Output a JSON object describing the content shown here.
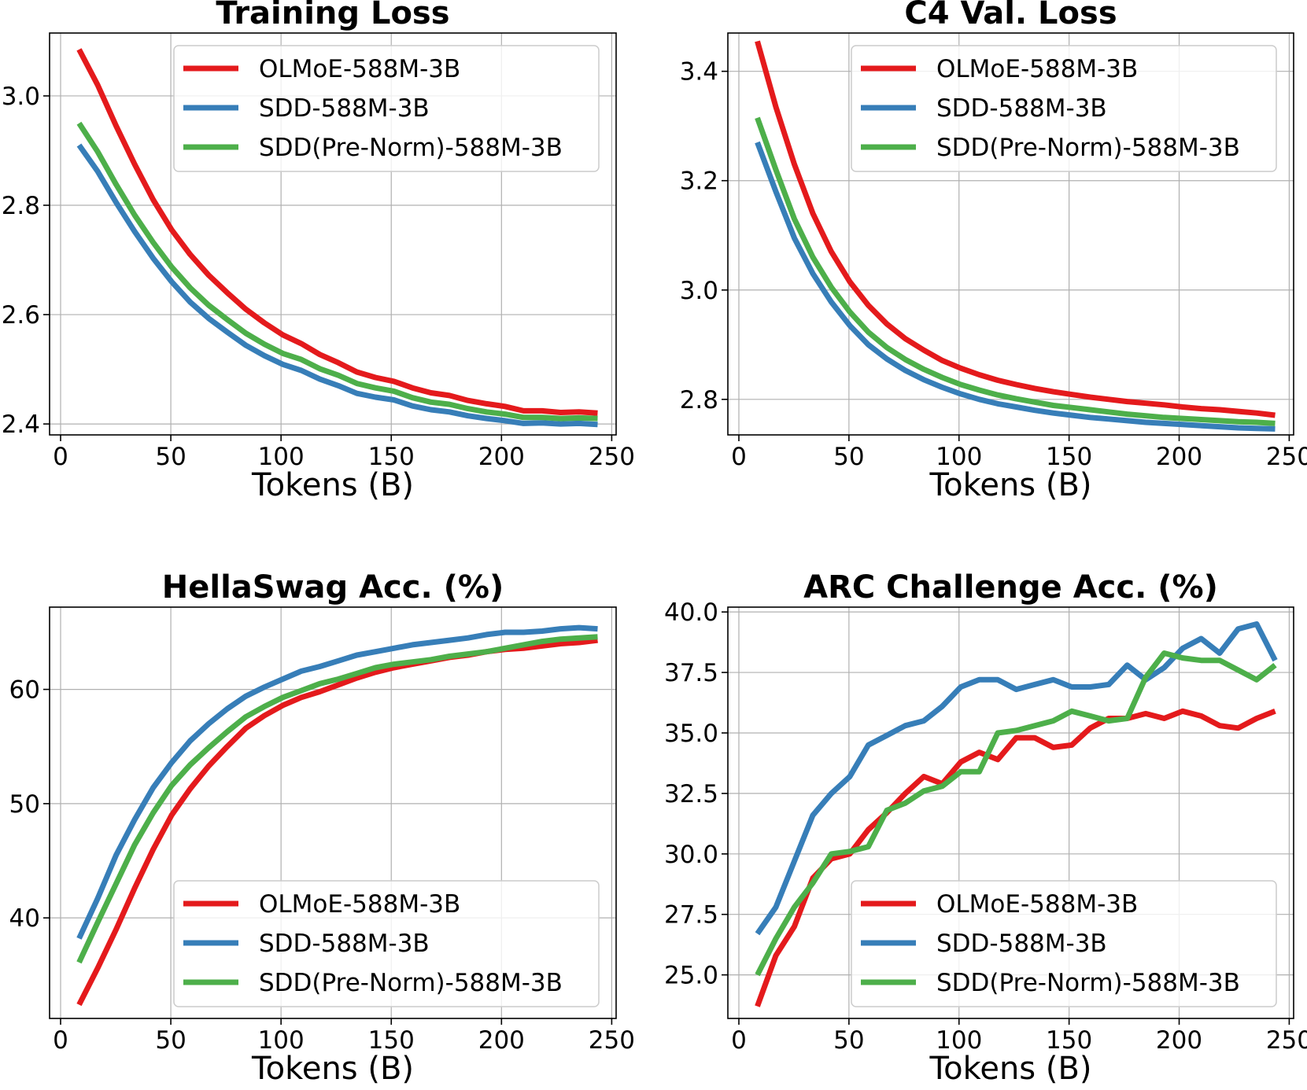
{
  "chart_data": [
    {
      "type": "line",
      "title": "Training Loss",
      "xlabel": "Tokens (B)",
      "ylabel": "",
      "xlim": [
        -5,
        252
      ],
      "ylim": [
        2.38,
        3.115
      ],
      "xticks": [
        0,
        50,
        100,
        150,
        200,
        250
      ],
      "xtick_labels": [
        "0",
        "50",
        "100",
        "150",
        "200",
        "250"
      ],
      "yticks": [
        2.4,
        2.6,
        2.8,
        3.0
      ],
      "ytick_labels": [
        "2.4",
        "2.6",
        "2.8",
        "3.0"
      ],
      "grid": true,
      "legend_position": "top-right",
      "x": [
        8.4,
        16.8,
        25.2,
        33.6,
        42,
        50.4,
        58.8,
        67.2,
        75.6,
        84,
        92.4,
        100.8,
        109.2,
        117.6,
        126,
        134.4,
        142.8,
        151.2,
        159.6,
        168,
        176.4,
        184.8,
        193.2,
        201.6,
        210,
        218.4,
        226.8,
        235.2,
        243.6
      ],
      "series": [
        {
          "name": "OLMoE-588M-3B",
          "color": "#e41a1c",
          "values": [
            3.085,
            3.02,
            2.945,
            2.875,
            2.81,
            2.755,
            2.71,
            2.672,
            2.64,
            2.61,
            2.585,
            2.563,
            2.547,
            2.527,
            2.512,
            2.495,
            2.485,
            2.478,
            2.466,
            2.457,
            2.452,
            2.443,
            2.437,
            2.432,
            2.424,
            2.424,
            2.421,
            2.422,
            2.42
          ]
        },
        {
          "name": "SDD-588M-3B",
          "color": "#377eb8",
          "values": [
            2.91,
            2.862,
            2.805,
            2.752,
            2.703,
            2.66,
            2.623,
            2.593,
            2.568,
            2.544,
            2.525,
            2.509,
            2.498,
            2.482,
            2.47,
            2.456,
            2.449,
            2.444,
            2.433,
            2.426,
            2.422,
            2.415,
            2.41,
            2.406,
            2.401,
            2.402,
            2.4,
            2.401,
            2.399
          ]
        },
        {
          "name": "SDD(Pre-Norm)-588M-3B",
          "color": "#4daf4a",
          "values": [
            2.95,
            2.898,
            2.838,
            2.782,
            2.732,
            2.687,
            2.649,
            2.617,
            2.591,
            2.566,
            2.546,
            2.529,
            2.518,
            2.501,
            2.489,
            2.474,
            2.466,
            2.46,
            2.448,
            2.44,
            2.436,
            2.428,
            2.422,
            2.418,
            2.412,
            2.412,
            2.41,
            2.411,
            2.41
          ]
        }
      ]
    },
    {
      "type": "line",
      "title": "C4 Val. Loss",
      "xlabel": "Tokens (B)",
      "ylabel": "",
      "xlim": [
        -5,
        252
      ],
      "ylim": [
        2.735,
        3.47
      ],
      "xticks": [
        0,
        50,
        100,
        150,
        200,
        250
      ],
      "xtick_labels": [
        "0",
        "50",
        "100",
        "150",
        "200",
        "250"
      ],
      "yticks": [
        2.8,
        3.0,
        3.2,
        3.4
      ],
      "ytick_labels": [
        "2.8",
        "3.0",
        "3.2",
        "3.4"
      ],
      "grid": true,
      "legend_position": "top-right",
      "x": [
        8.4,
        16.8,
        25.2,
        33.6,
        42,
        50.4,
        58.8,
        67.2,
        75.6,
        84,
        92.4,
        100.8,
        109.2,
        117.6,
        126,
        134.4,
        142.8,
        151.2,
        159.6,
        168,
        176.4,
        184.8,
        193.2,
        201.6,
        210,
        218.4,
        226.8,
        235.2,
        243.6
      ],
      "series": [
        {
          "name": "OLMoE-588M-3B",
          "color": "#e41a1c",
          "values": [
            3.455,
            3.335,
            3.23,
            3.14,
            3.07,
            3.015,
            2.972,
            2.938,
            2.911,
            2.89,
            2.871,
            2.857,
            2.845,
            2.835,
            2.827,
            2.82,
            2.814,
            2.809,
            2.804,
            2.8,
            2.796,
            2.793,
            2.79,
            2.786,
            2.783,
            2.781,
            2.778,
            2.775,
            2.771
          ]
        },
        {
          "name": "SDD-588M-3B",
          "color": "#377eb8",
          "values": [
            3.27,
            3.18,
            3.095,
            3.03,
            2.978,
            2.935,
            2.9,
            2.874,
            2.853,
            2.836,
            2.822,
            2.81,
            2.8,
            2.792,
            2.786,
            2.78,
            2.775,
            2.771,
            2.767,
            2.764,
            2.761,
            2.758,
            2.756,
            2.754,
            2.752,
            2.75,
            2.748,
            2.747,
            2.746
          ]
        },
        {
          "name": "SDD(Pre-Norm)-588M-3B",
          "color": "#4daf4a",
          "values": [
            3.315,
            3.22,
            3.13,
            3.06,
            3.005,
            2.96,
            2.923,
            2.895,
            2.873,
            2.855,
            2.84,
            2.827,
            2.817,
            2.808,
            2.801,
            2.795,
            2.789,
            2.785,
            2.781,
            2.777,
            2.773,
            2.77,
            2.767,
            2.765,
            2.763,
            2.761,
            2.759,
            2.758,
            2.756
          ]
        }
      ]
    },
    {
      "type": "line",
      "title": "HellaSwag Acc. (%)",
      "xlabel": "Tokens (B)",
      "ylabel": "",
      "xlim": [
        -5,
        252
      ],
      "ylim": [
        31.2,
        67.2
      ],
      "xticks": [
        0,
        50,
        100,
        150,
        200,
        250
      ],
      "xtick_labels": [
        "0",
        "50",
        "100",
        "150",
        "200",
        "250"
      ],
      "yticks": [
        40,
        50,
        60
      ],
      "ytick_labels": [
        "40",
        "50",
        "60"
      ],
      "grid": true,
      "legend_position": "bottom-right",
      "x": [
        8.4,
        16.8,
        25.2,
        33.6,
        42,
        50.4,
        58.8,
        67.2,
        75.6,
        84,
        92.4,
        100.8,
        109.2,
        117.6,
        126,
        134.4,
        142.8,
        151.2,
        159.6,
        168,
        176.4,
        184.8,
        193.2,
        201.6,
        210,
        218.4,
        226.8,
        235.2,
        243.6
      ],
      "series": [
        {
          "name": "OLMoE-588M-3B",
          "color": "#e41a1c",
          "values": [
            32.4,
            35.6,
            39.0,
            42.6,
            46.0,
            49.0,
            51.3,
            53.3,
            55.0,
            56.6,
            57.7,
            58.6,
            59.3,
            59.8,
            60.4,
            61.0,
            61.5,
            61.9,
            62.2,
            62.5,
            62.8,
            63.0,
            63.3,
            63.5,
            63.6,
            63.8,
            64.0,
            64.1,
            64.3
          ]
        },
        {
          "name": "SDD-588M-3B",
          "color": "#377eb8",
          "values": [
            38.2,
            41.7,
            45.5,
            48.6,
            51.4,
            53.6,
            55.5,
            57.0,
            58.3,
            59.4,
            60.2,
            60.9,
            61.6,
            62.0,
            62.5,
            63.0,
            63.3,
            63.6,
            63.9,
            64.1,
            64.3,
            64.5,
            64.8,
            65.0,
            65.0,
            65.1,
            65.3,
            65.4,
            65.3
          ]
        },
        {
          "name": "SDD(Pre-Norm)-588M-3B",
          "color": "#4daf4a",
          "values": [
            36.1,
            39.6,
            43.0,
            46.4,
            49.2,
            51.6,
            53.4,
            54.9,
            56.3,
            57.6,
            58.5,
            59.3,
            59.9,
            60.5,
            60.9,
            61.4,
            61.9,
            62.2,
            62.4,
            62.6,
            62.9,
            63.1,
            63.3,
            63.6,
            63.9,
            64.2,
            64.4,
            64.5,
            64.6
          ]
        }
      ]
    },
    {
      "type": "line",
      "title": "ARC Challenge Acc. (%)",
      "xlabel": "Tokens (B)",
      "ylabel": "",
      "xlim": [
        -5,
        252
      ],
      "ylim": [
        23.2,
        40.2
      ],
      "xticks": [
        0,
        50,
        100,
        150,
        200,
        250
      ],
      "xtick_labels": [
        "0",
        "50",
        "100",
        "150",
        "200",
        "250"
      ],
      "yticks": [
        25.0,
        27.5,
        30.0,
        32.5,
        35.0,
        37.5,
        40.0
      ],
      "ytick_labels": [
        "25.0",
        "27.5",
        "30.0",
        "32.5",
        "35.0",
        "37.5",
        "40.0"
      ],
      "grid": true,
      "legend_position": "bottom-right",
      "x": [
        8.4,
        16.8,
        25.2,
        33.6,
        42,
        50.4,
        58.8,
        67.2,
        75.6,
        84,
        92.4,
        100.8,
        109.2,
        117.6,
        126,
        134.4,
        142.8,
        151.2,
        159.6,
        168,
        176.4,
        184.8,
        193.2,
        201.6,
        210,
        218.4,
        226.8,
        235.2,
        243.6
      ],
      "series": [
        {
          "name": "OLMoE-588M-3B",
          "color": "#e41a1c",
          "values": [
            23.7,
            25.8,
            27.0,
            29.0,
            29.8,
            30.0,
            31.0,
            31.7,
            32.5,
            33.2,
            32.9,
            33.8,
            34.2,
            33.9,
            34.8,
            34.8,
            34.4,
            34.5,
            35.2,
            35.6,
            35.6,
            35.8,
            35.6,
            35.9,
            35.7,
            35.3,
            35.2,
            35.6,
            35.9
          ]
        },
        {
          "name": "SDD-588M-3B",
          "color": "#377eb8",
          "values": [
            26.7,
            27.8,
            29.7,
            31.6,
            32.5,
            33.2,
            34.5,
            34.9,
            35.3,
            35.5,
            36.1,
            36.9,
            37.2,
            37.2,
            36.8,
            37.0,
            37.2,
            36.9,
            36.9,
            37.0,
            37.8,
            37.2,
            37.7,
            38.5,
            38.9,
            38.3,
            39.3,
            39.5,
            38.0
          ]
        },
        {
          "name": "SDD(Pre-Norm)-588M-3B",
          "color": "#4daf4a",
          "values": [
            25.0,
            26.5,
            27.8,
            28.8,
            30.0,
            30.1,
            30.3,
            31.8,
            32.1,
            32.6,
            32.8,
            33.4,
            33.4,
            35.0,
            35.1,
            35.3,
            35.5,
            35.9,
            35.7,
            35.5,
            35.6,
            37.3,
            38.3,
            38.1,
            38.0,
            38.0,
            37.6,
            37.2,
            37.8
          ]
        }
      ]
    }
  ]
}
